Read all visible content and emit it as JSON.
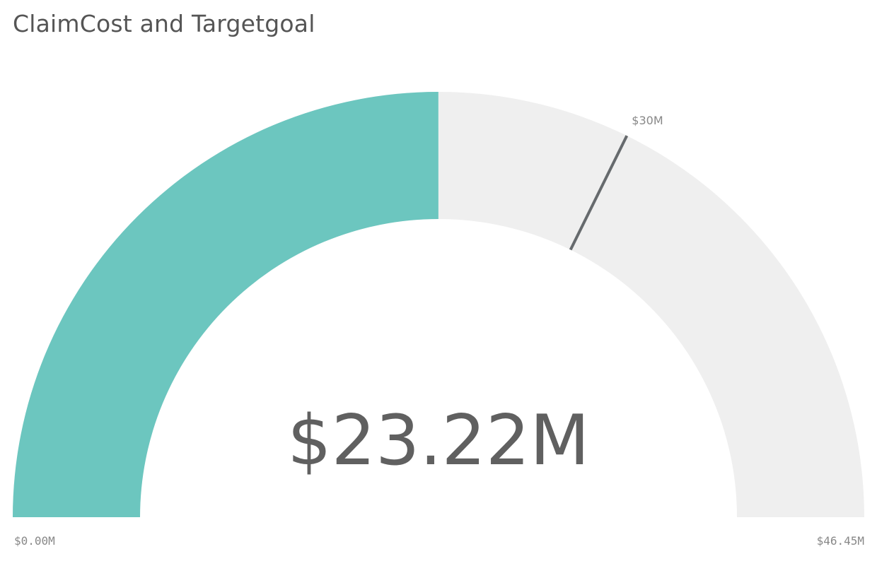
{
  "title": "ClaimCost and Targetgoal",
  "chart_data": {
    "type": "gauge",
    "title": "ClaimCost and Targetgoal",
    "min": 0,
    "max": 46.45,
    "value": 23.22,
    "target": 30,
    "unit": "$M",
    "value_label": "$23.22M",
    "min_label": "$0.00M",
    "max_label": "$46.45M",
    "target_label": "$30M",
    "fill_color": "#6cc6bf",
    "track_color": "#efefef",
    "target_color": "#666a6d",
    "text_color": "#606060"
  }
}
